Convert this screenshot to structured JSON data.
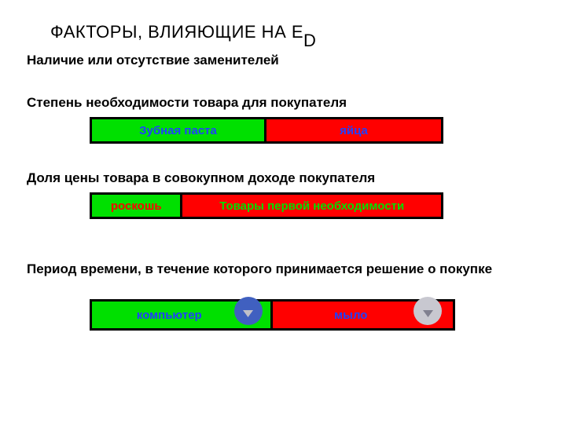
{
  "title": {
    "main": "ФАКТОРЫ, ВЛИЯЮЩИЕ НА E",
    "sub": "D"
  },
  "lines": {
    "l1": "Наличие или отсутствие заменителей",
    "l2": "Степень необходимости товара для покупателя",
    "l3": "Доля цены товара в совокупном доходе покупателя",
    "l4": "Период времени, в течение которого принимается решение о покупке"
  },
  "bars": {
    "bar1": {
      "left": {
        "label": "Зубная паста",
        "bg": "#00e000",
        "text_color": "#2040ff"
      },
      "right": {
        "label": "яйца",
        "bg": "#ff0000",
        "text_color": "#2040ff"
      }
    },
    "bar2": {
      "left": {
        "label": "роскошь",
        "bg": "#00e000",
        "text_color": "#ff0000"
      },
      "right": {
        "label": "Товары первой необходимости",
        "bg": "#ff0000",
        "text_color": "#00e000"
      }
    },
    "bar3": {
      "left": {
        "label": "компьютер",
        "bg": "#00e000",
        "text_color": "#2040ff"
      },
      "right": {
        "label": "мыло",
        "bg": "#ff0000",
        "text_color": "#2040ff"
      }
    }
  },
  "colors": {
    "green": "#00e000",
    "red": "#ff0000",
    "blue_text": "#2040ff",
    "border": "#000000",
    "circle_blue": "#4060c0",
    "circle_gray": "#c8c8d0"
  },
  "fontsizes": {
    "title": 22,
    "body": 17,
    "cell": 15
  }
}
